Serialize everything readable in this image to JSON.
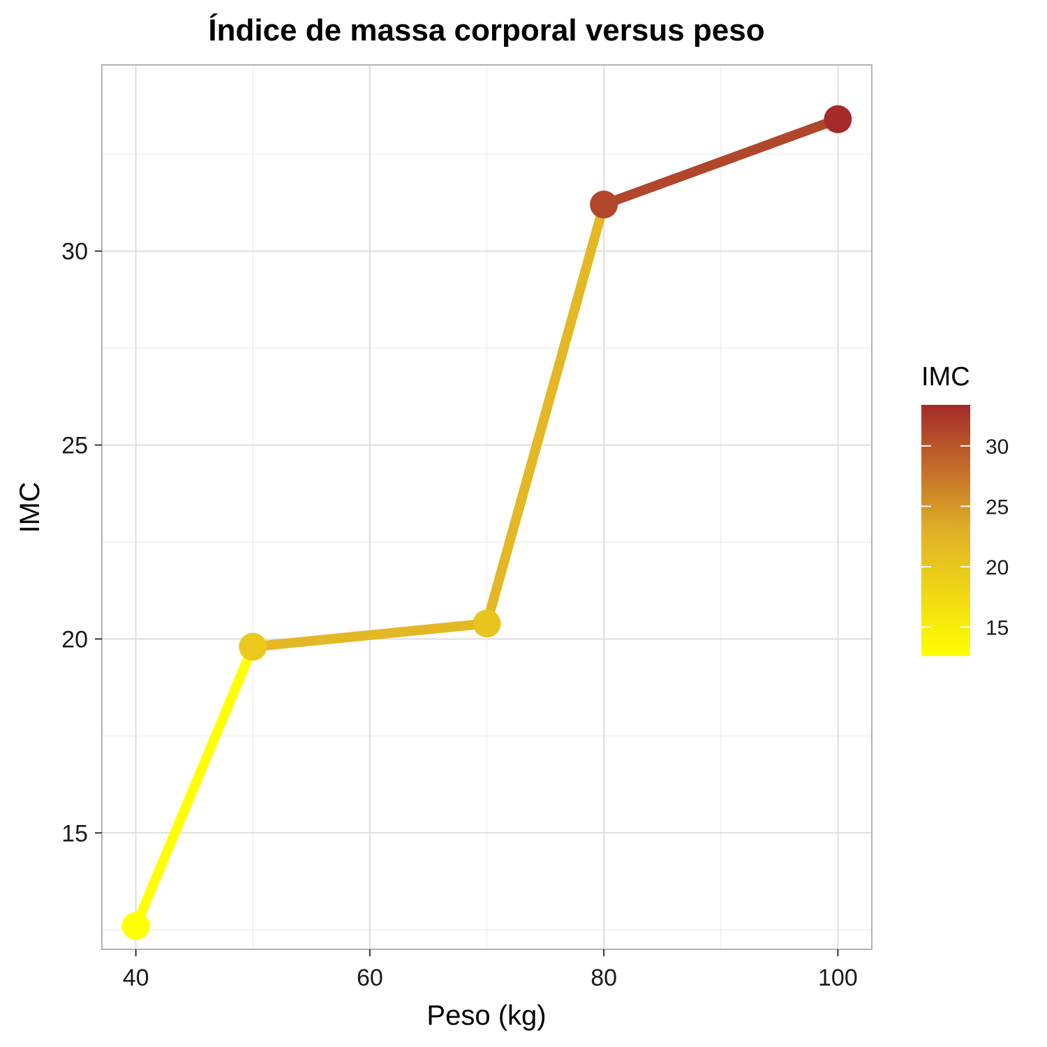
{
  "chart_data": {
    "type": "line",
    "title": "Índice de massa corporal versus peso",
    "xlabel": "Peso (kg)",
    "ylabel": "IMC",
    "x": [
      40,
      50,
      70,
      80,
      100
    ],
    "y": [
      12.6,
      19.8,
      20.4,
      31.2,
      33.4
    ],
    "xlim": [
      37.1,
      102.9
    ],
    "ylim": [
      12.0,
      34.8
    ],
    "x_ticks": [
      40,
      60,
      80,
      100
    ],
    "x_tick_labels": [
      "40",
      "60",
      "80",
      "100"
    ],
    "y_ticks": [
      15,
      20,
      25,
      30
    ],
    "y_tick_labels": [
      "15",
      "20",
      "25",
      "30"
    ],
    "grid": true,
    "color_scale": {
      "title": "IMC",
      "low": "#ffff00",
      "mid": "#e0b028",
      "high": "#a52a2a",
      "min": 12.6,
      "max": 33.4,
      "ticks": [
        15,
        20,
        25,
        30
      ],
      "tick_labels": [
        "15",
        "20",
        "25",
        "30"
      ],
      "placement": "right"
    }
  }
}
